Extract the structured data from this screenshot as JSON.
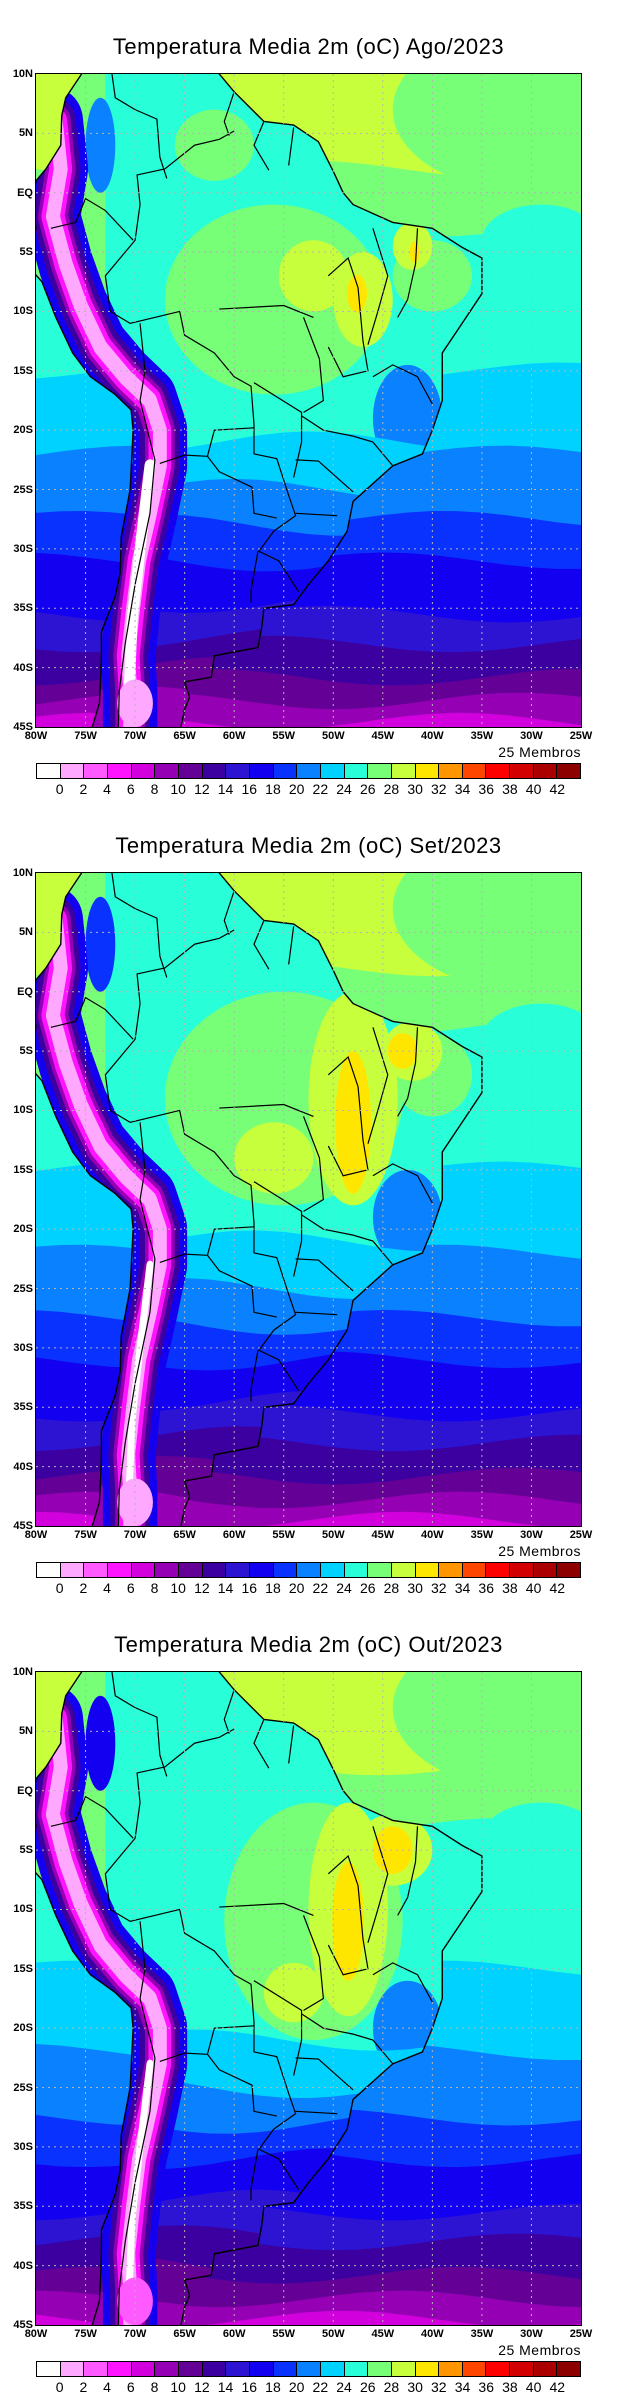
{
  "chart_data": [
    {
      "type": "heatmap",
      "title": "Temperatura Media 2m (oC) Ago/2023",
      "members_label": "25 Membros",
      "xlim": [
        -80,
        -25
      ],
      "ylim": [
        -45,
        10
      ],
      "lon_ticks": [
        "80W",
        "75W",
        "70W",
        "65W",
        "60W",
        "55W",
        "50W",
        "45W",
        "40W",
        "35W",
        "30W",
        "25W"
      ],
      "lat_ticks": [
        "10N",
        "5N",
        "EQ",
        "5S",
        "10S",
        "15S",
        "20S",
        "25S",
        "30S",
        "35S",
        "40S",
        "45S"
      ],
      "colorbar_labels": [
        "0",
        "2",
        "4",
        "6",
        "8",
        "10",
        "12",
        "14",
        "16",
        "18",
        "20",
        "22",
        "24",
        "26",
        "28",
        "30",
        "32",
        "34",
        "36",
        "38",
        "40",
        "42"
      ],
      "grid": true
    },
    {
      "type": "heatmap",
      "title": "Temperatura Media 2m (oC) Set/2023",
      "members_label": "25 Membros",
      "xlim": [
        -80,
        -25
      ],
      "ylim": [
        -45,
        10
      ],
      "lon_ticks": [
        "80W",
        "75W",
        "70W",
        "65W",
        "60W",
        "55W",
        "50W",
        "45W",
        "40W",
        "35W",
        "30W",
        "25W"
      ],
      "lat_ticks": [
        "10N",
        "5N",
        "EQ",
        "5S",
        "10S",
        "15S",
        "20S",
        "25S",
        "30S",
        "35S",
        "40S",
        "45S"
      ],
      "colorbar_labels": [
        "0",
        "2",
        "4",
        "6",
        "8",
        "10",
        "12",
        "14",
        "16",
        "18",
        "20",
        "22",
        "24",
        "26",
        "28",
        "30",
        "32",
        "34",
        "36",
        "38",
        "40",
        "42"
      ],
      "grid": true
    },
    {
      "type": "heatmap",
      "title": "Temperatura Media 2m (oC) Out/2023",
      "members_label": "25 Membros",
      "xlim": [
        -80,
        -25
      ],
      "ylim": [
        -45,
        10
      ],
      "lon_ticks": [
        "80W",
        "75W",
        "70W",
        "65W",
        "60W",
        "55W",
        "50W",
        "45W",
        "40W",
        "35W",
        "30W",
        "25W"
      ],
      "lat_ticks": [
        "10N",
        "5N",
        "EQ",
        "5S",
        "10S",
        "15S",
        "20S",
        "25S",
        "30S",
        "35S",
        "40S",
        "45S"
      ],
      "colorbar_labels": [
        "0",
        "2",
        "4",
        "6",
        "8",
        "10",
        "12",
        "14",
        "16",
        "18",
        "20",
        "22",
        "24",
        "26",
        "28",
        "30",
        "32",
        "34",
        "36",
        "38",
        "40",
        "42"
      ],
      "grid": true
    }
  ],
  "colorbar_colors": [
    "#ffffff",
    "#ffa8ff",
    "#ff5aff",
    "#ff14ff",
    "#d200dc",
    "#9600b4",
    "#640096",
    "#3c00a0",
    "#2d14d2",
    "#1400f0",
    "#0a32ff",
    "#0a82ff",
    "#00d2ff",
    "#28ffd8",
    "#78ff78",
    "#c8ff3c",
    "#ffe600",
    "#ff9600",
    "#ff4600",
    "#ff0000",
    "#d20000",
    "#aa0000",
    "#8c0000"
  ]
}
